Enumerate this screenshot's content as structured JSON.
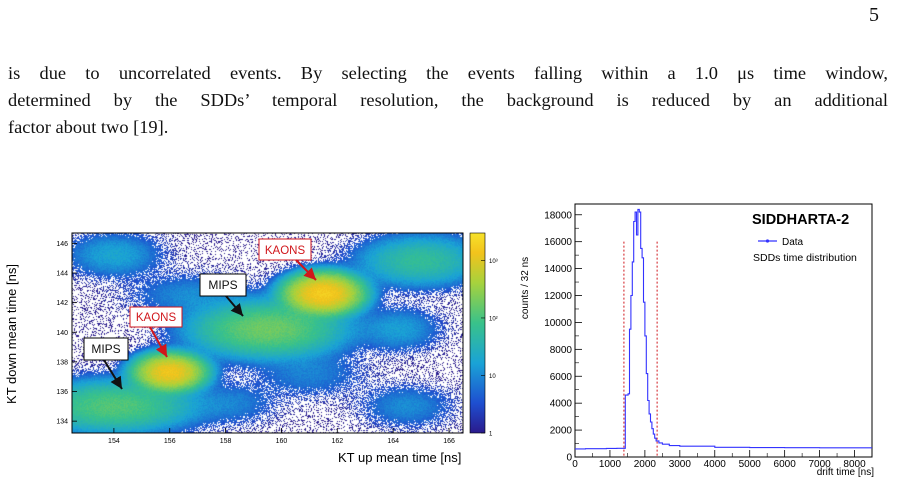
{
  "page": {
    "number": "5",
    "text_lines": [
      "is due to uncorrelated events. By selecting the events falling within a 1.0 μs time window,",
      "determined by the SDDs’ temporal resolution, the background is reduced by an additional",
      "factor about two [19]."
    ]
  },
  "figures": {
    "left": {
      "xlabel": "KT up mean time [ns]",
      "ylabel": "KT down mean time [ns]",
      "x_ticks": [
        "154",
        "156",
        "158",
        "160",
        "162",
        "164",
        "166"
      ],
      "y_ticks": [
        "134",
        "136",
        "138",
        "140",
        "142",
        "144",
        "146"
      ],
      "colorbar_ticks": [
        "1",
        "10",
        "10²",
        "10³"
      ],
      "annotations": [
        {
          "label": "MIPS",
          "color": "#111111"
        },
        {
          "label": "KAONS",
          "color": "#d0161b"
        },
        {
          "label": "MIPS",
          "color": "#111111"
        },
        {
          "label": "KAONS",
          "color": "#d0161b"
        }
      ]
    },
    "right": {
      "legend_title": "SIDDHARTA-2",
      "legend_entry": "Data",
      "legend_note": "SDDs time distribution"
    }
  },
  "chart_data": [
    {
      "type": "heatmap",
      "title": "",
      "xlabel": "KT up mean time [ns]",
      "ylabel": "KT down mean time [ns]",
      "xlim": [
        152.5,
        166.5
      ],
      "ylim": [
        133.2,
        146.7
      ],
      "z_scale": "log",
      "zlim": [
        1,
        3000
      ],
      "colormap": "viridis-like (blue-green-yellow)",
      "clusters": [
        {
          "x": 154.0,
          "y": 135.0,
          "sx": 1.4,
          "sy": 0.85,
          "peak": 120,
          "label": "MIPS"
        },
        {
          "x": 156.0,
          "y": 137.3,
          "sx": 0.55,
          "sy": 0.55,
          "peak": 1400,
          "label": "KAONS"
        },
        {
          "x": 159.5,
          "y": 140.2,
          "sx": 1.3,
          "sy": 0.9,
          "peak": 180,
          "label": "MIPS"
        },
        {
          "x": 161.5,
          "y": 142.6,
          "sx": 0.6,
          "sy": 0.6,
          "peak": 1800,
          "label": "KAONS"
        },
        {
          "x": 165.0,
          "y": 144.8,
          "sx": 1.1,
          "sy": 0.85,
          "peak": 60
        },
        {
          "x": 154.0,
          "y": 145.2,
          "sx": 0.9,
          "sy": 0.8,
          "peak": 18
        },
        {
          "x": 164.2,
          "y": 140.2,
          "sx": 0.8,
          "sy": 0.8,
          "peak": 15
        },
        {
          "x": 161.0,
          "y": 137.2,
          "sx": 1.1,
          "sy": 0.9,
          "peak": 8
        },
        {
          "x": 164.5,
          "y": 135.0,
          "sx": 0.9,
          "sy": 0.8,
          "peak": 10
        },
        {
          "x": 158.2,
          "y": 135.2,
          "sx": 0.9,
          "sy": 0.8,
          "peak": 8
        },
        {
          "x": 156.8,
          "y": 142.5,
          "sx": 1.2,
          "sy": 0.8,
          "peak": 10
        }
      ]
    },
    {
      "type": "line",
      "title": "",
      "xlabel": "drift time [ns]",
      "ylabel": "counts / 32 ns",
      "xlim": [
        0,
        8500
      ],
      "ylim": [
        0,
        18800
      ],
      "x_ticks": [
        0,
        1000,
        2000,
        3000,
        4000,
        5000,
        6000,
        7000,
        8000
      ],
      "y_ticks": [
        0,
        2000,
        4000,
        6000,
        8000,
        10000,
        12000,
        14000,
        16000,
        18000
      ],
      "series": [
        {
          "name": "Data",
          "color": "#3333ff",
          "x": [
            0,
            300,
            600,
            900,
            1200,
            1400,
            1440,
            1480,
            1520,
            1560,
            1600,
            1640,
            1680,
            1720,
            1760,
            1800,
            1840,
            1880,
            1920,
            1960,
            2000,
            2040,
            2080,
            2120,
            2160,
            2200,
            2240,
            2280,
            2320,
            2400,
            2500,
            2700,
            3000,
            4000,
            5000,
            6000,
            7000,
            8000,
            8500
          ],
          "y": [
            600,
            620,
            620,
            640,
            650,
            650,
            4600,
            4600,
            4700,
            9500,
            12000,
            14500,
            17500,
            18200,
            16500,
            18400,
            18200,
            15500,
            14800,
            11500,
            9000,
            6200,
            4200,
            3200,
            2600,
            2100,
            1700,
            1400,
            1200,
            1050,
            950,
            850,
            800,
            720,
            700,
            690,
            680,
            680,
            680
          ]
        }
      ],
      "vertical_lines": [
        {
          "x": 1400,
          "style": "dotted",
          "color": "#d0161b"
        },
        {
          "x": 2350,
          "style": "dotted",
          "color": "#d0161b"
        }
      ],
      "legend": "top-right",
      "legend_title": "SIDDHARTA-2"
    }
  ]
}
